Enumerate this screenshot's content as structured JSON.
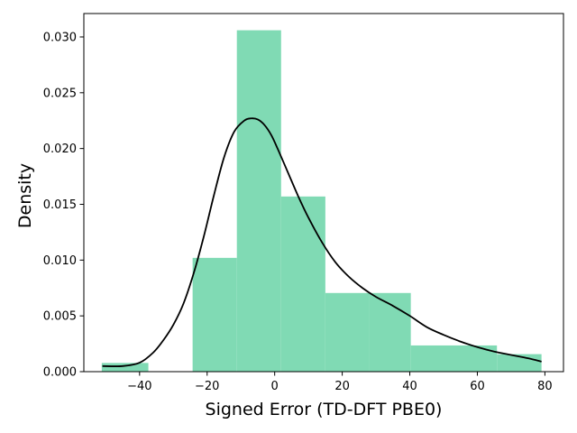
{
  "chart_data": {
    "type": "bar",
    "title": "",
    "xlabel": "Signed Error (TD-DFT PBE0)",
    "ylabel": "Density",
    "xlim": [
      -56.5,
      85.5
    ],
    "ylim": [
      0,
      0.0321
    ],
    "bar_color": "#80dab4",
    "curve_color": "#000000",
    "grid": false,
    "x_ticks": [
      -40,
      -20,
      0,
      20,
      40,
      60,
      80
    ],
    "x_tick_labels": [
      "−40",
      "−20",
      "0",
      "20",
      "40",
      "60",
      "80"
    ],
    "y_ticks": [
      0,
      0.005,
      0.01,
      0.015,
      0.02,
      0.025,
      0.03
    ],
    "y_tick_labels": [
      "0.000",
      "0.005",
      "0.010",
      "0.015",
      "0.020",
      "0.025",
      "0.030"
    ],
    "histogram": [
      {
        "x0": -51.2,
        "x1": -37.4,
        "density": 0.00078
      },
      {
        "x0": -24.3,
        "x1": -11.2,
        "density": 0.0102
      },
      {
        "x0": -11.2,
        "x1": 1.9,
        "density": 0.0306
      },
      {
        "x0": 1.9,
        "x1": 15.0,
        "density": 0.0157
      },
      {
        "x0": 15.0,
        "x1": 28.1,
        "density": 0.00705
      },
      {
        "x0": 28.1,
        "x1": 40.3,
        "density": 0.00705
      },
      {
        "x0": 40.3,
        "x1": 65.8,
        "density": 0.00235
      },
      {
        "x0": 65.8,
        "x1": 79.0,
        "density": 0.00157
      }
    ],
    "kde": {
      "x": [
        -51,
        -45,
        -40,
        -36,
        -33,
        -30,
        -27,
        -24,
        -21,
        -18,
        -15,
        -12,
        -9,
        -7,
        -5,
        -3,
        -1,
        1,
        4,
        7,
        10,
        14,
        18,
        22,
        26,
        30,
        35,
        40,
        45,
        50,
        55,
        60,
        65,
        70,
        75,
        79
      ],
      "y": [
        0.0005,
        0.0005,
        0.0008,
        0.0017,
        0.0028,
        0.0042,
        0.0061,
        0.0088,
        0.0121,
        0.0158,
        0.0192,
        0.0215,
        0.0225,
        0.0227,
        0.0226,
        0.0221,
        0.0212,
        0.0199,
        0.0178,
        0.0157,
        0.0138,
        0.0116,
        0.0098,
        0.0085,
        0.0075,
        0.0067,
        0.0059,
        0.005,
        0.004,
        0.0033,
        0.0027,
        0.0022,
        0.0018,
        0.0015,
        0.0012,
        0.0009
      ]
    }
  }
}
